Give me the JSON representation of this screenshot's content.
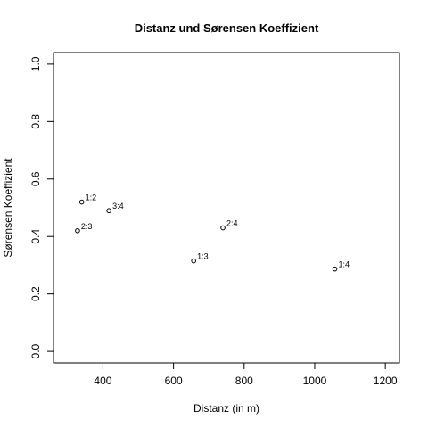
{
  "chart_data": {
    "type": "scatter",
    "title": "Distanz und Sørensen Koeffizient",
    "xlabel": "Distanz (in m)",
    "ylabel": "Sørensen Koeffizient",
    "xlim": [
      260,
      1240
    ],
    "ylim": [
      -0.04,
      1.04
    ],
    "xticks": [
      400,
      600,
      800,
      1000,
      1200
    ],
    "yticks": [
      0.0,
      0.2,
      0.4,
      0.6,
      0.8,
      1.0
    ],
    "xtick_labels": [
      "400",
      "600",
      "800",
      "1000",
      "1200"
    ],
    "ytick_labels": [
      "0.0",
      "0.2",
      "0.4",
      "0.6",
      "0.8",
      "1.0"
    ],
    "grid": false,
    "points": [
      {
        "label": "1:2",
        "x": 340,
        "y": 0.52
      },
      {
        "label": "2:3",
        "x": 328,
        "y": 0.42
      },
      {
        "label": "3:4",
        "x": 417,
        "y": 0.49
      },
      {
        "label": "1:3",
        "x": 657,
        "y": 0.315
      },
      {
        "label": "2:4",
        "x": 740,
        "y": 0.43
      },
      {
        "label": "1:4",
        "x": 1057,
        "y": 0.287
      }
    ]
  }
}
